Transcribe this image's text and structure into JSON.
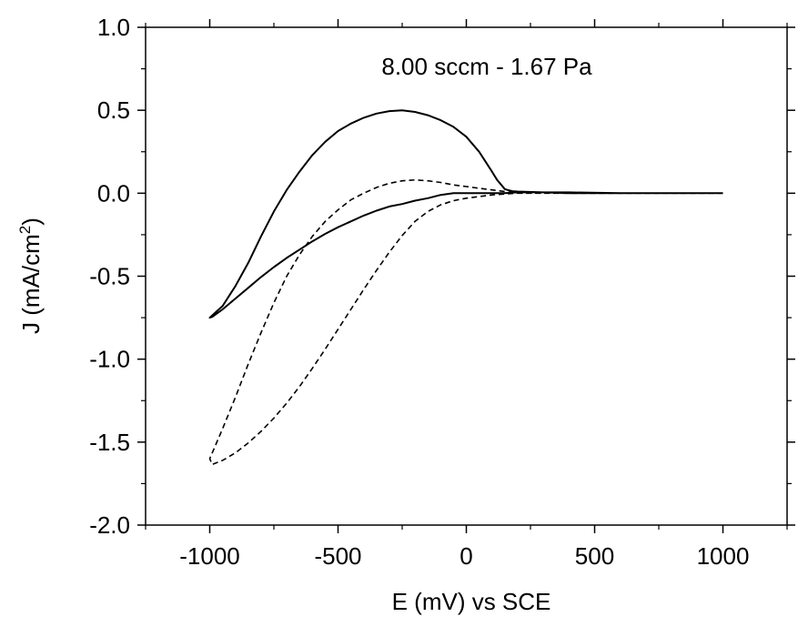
{
  "chart_data": {
    "type": "line",
    "title": "",
    "annotation": "8.00 sccm - 1.67 Pa",
    "xlabel": "E (mV) vs SCE",
    "ylabel_main": "J (mA/cm",
    "ylabel_sup": "2",
    "ylabel_close": ")",
    "xlim": [
      -1250,
      1250
    ],
    "ylim": [
      -2.0,
      1.0
    ],
    "x_major_ticks": [
      -1000,
      -500,
      0,
      500,
      1000
    ],
    "x_tick_labels": [
      "-1000",
      "-500",
      "0",
      "500",
      "1000"
    ],
    "x_minor_ticks": [
      -1250,
      -750,
      -250,
      250,
      750,
      1250
    ],
    "y_major_ticks": [
      -2.0,
      -1.5,
      -1.0,
      -0.5,
      0.0,
      0.5,
      1.0
    ],
    "y_tick_labels": [
      "-2.0",
      "-1.5",
      "-1.0",
      "-0.5",
      "0.0",
      "0.5",
      "1.0"
    ],
    "y_minor_ticks": [
      -1.75,
      -1.25,
      -0.75,
      -0.25,
      0.25,
      0.75
    ],
    "grid": false,
    "legend": "none",
    "series": [
      {
        "style": "solid",
        "color": "#000000",
        "x": [
          1000,
          800,
          600,
          400,
          300,
          200,
          180,
          160,
          150,
          120,
          100,
          50,
          0,
          -50,
          -100,
          -150,
          -200,
          -250,
          -300,
          -350,
          -400,
          -450,
          -500,
          -550,
          -600,
          -650,
          -700,
          -750,
          -800,
          -850,
          -900,
          -950,
          -1000,
          -990,
          -950,
          -900,
          -850,
          -800,
          -750,
          -700,
          -650,
          -600,
          -550,
          -500,
          -450,
          -400,
          -350,
          -300,
          -250,
          -200,
          -150,
          -100,
          -50,
          0,
          50,
          100,
          150,
          200,
          300,
          400,
          600,
          800,
          1000
        ],
        "y": [
          0.0,
          0.0,
          0.0,
          0.0,
          0.005,
          0.01,
          0.012,
          0.02,
          0.025,
          0.08,
          0.13,
          0.25,
          0.34,
          0.4,
          0.44,
          0.47,
          0.49,
          0.5,
          0.495,
          0.48,
          0.455,
          0.42,
          0.375,
          0.31,
          0.23,
          0.13,
          0.02,
          -0.11,
          -0.26,
          -0.42,
          -0.56,
          -0.68,
          -0.75,
          -0.745,
          -0.7,
          -0.635,
          -0.57,
          -0.505,
          -0.445,
          -0.39,
          -0.34,
          -0.29,
          -0.245,
          -0.205,
          -0.17,
          -0.135,
          -0.105,
          -0.08,
          -0.065,
          -0.045,
          -0.03,
          -0.01,
          0.0,
          0.0,
          0.0,
          0.0,
          0.0,
          0.005,
          0.005,
          0.005,
          0.0,
          0.0,
          0.0
        ]
      },
      {
        "style": "dashed",
        "color": "#000000",
        "x": [
          1000,
          800,
          600,
          400,
          300,
          200,
          150,
          100,
          50,
          0,
          -50,
          -100,
          -150,
          -200,
          -250,
          -300,
          -350,
          -400,
          -450,
          -500,
          -550,
          -600,
          -650,
          -700,
          -750,
          -800,
          -850,
          -900,
          -950,
          -1000,
          -990,
          -950,
          -900,
          -850,
          -800,
          -750,
          -700,
          -650,
          -600,
          -550,
          -500,
          -450,
          -400,
          -350,
          -300,
          -250,
          -200,
          -150,
          -100,
          -50,
          0,
          50,
          100,
          150,
          200,
          300,
          400,
          600,
          800,
          1000
        ],
        "y": [
          0.0,
          0.0,
          0.0,
          0.0,
          0.0,
          0.0,
          0.01,
          0.02,
          0.03,
          0.04,
          0.05,
          0.065,
          0.075,
          0.08,
          0.075,
          0.06,
          0.035,
          0.0,
          -0.04,
          -0.1,
          -0.17,
          -0.26,
          -0.37,
          -0.5,
          -0.66,
          -0.84,
          -1.03,
          -1.23,
          -1.42,
          -1.6,
          -1.635,
          -1.61,
          -1.565,
          -1.505,
          -1.435,
          -1.355,
          -1.265,
          -1.165,
          -1.055,
          -0.94,
          -0.82,
          -0.7,
          -0.58,
          -0.465,
          -0.355,
          -0.255,
          -0.17,
          -0.11,
          -0.07,
          -0.045,
          -0.03,
          -0.02,
          -0.01,
          -0.005,
          0.0,
          0.0,
          0.0,
          0.0,
          0.0,
          0.0
        ]
      }
    ]
  }
}
